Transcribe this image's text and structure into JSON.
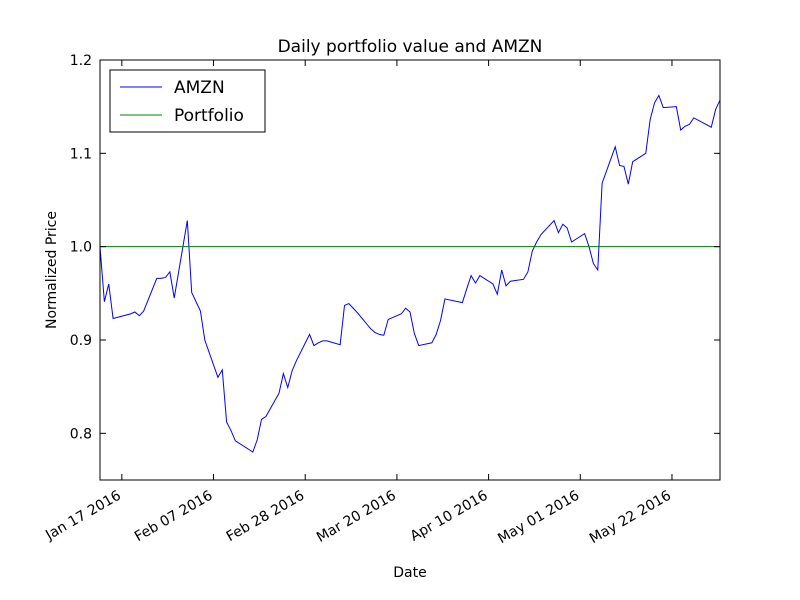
{
  "chart_data": {
    "type": "line",
    "title": "Daily portfolio value and AMZN",
    "xlabel": "Date",
    "ylabel": "Normalized Price",
    "xlim": [
      "2016-01-12",
      "2016-06-02"
    ],
    "ylim": [
      0.75,
      1.2
    ],
    "yticks": [
      0.8,
      0.9,
      1.0,
      1.1,
      1.2
    ],
    "ytick_labels": [
      "0.8",
      "0.9",
      "1.0",
      "1.1",
      "1.2"
    ],
    "xticks": [
      {
        "date": "2016-01-17",
        "label": "Jan 17 2016"
      },
      {
        "date": "2016-02-07",
        "label": "Feb 07 2016"
      },
      {
        "date": "2016-02-28",
        "label": "Feb 28 2016"
      },
      {
        "date": "2016-03-20",
        "label": "Mar 20 2016"
      },
      {
        "date": "2016-04-10",
        "label": "Apr 10 2016"
      },
      {
        "date": "2016-05-01",
        "label": "May 01 2016"
      },
      {
        "date": "2016-05-22",
        "label": "May 22 2016"
      }
    ],
    "grid": false,
    "legend_position": "top-left",
    "series": [
      {
        "name": "AMZN",
        "color": "#0000ff",
        "points": [
          [
            "2016-01-12",
            1.0
          ],
          [
            "2016-01-13",
            0.941
          ],
          [
            "2016-01-14",
            0.96
          ],
          [
            "2016-01-15",
            0.923
          ],
          [
            "2016-01-19",
            0.928
          ],
          [
            "2016-01-20",
            0.93
          ],
          [
            "2016-01-21",
            0.926
          ],
          [
            "2016-01-22",
            0.931
          ],
          [
            "2016-01-25",
            0.966
          ],
          [
            "2016-01-26",
            0.966
          ],
          [
            "2016-01-27",
            0.967
          ],
          [
            "2016-01-28",
            0.973
          ],
          [
            "2016-01-29",
            0.945
          ],
          [
            "2016-02-01",
            1.028
          ],
          [
            "2016-02-02",
            0.951
          ],
          [
            "2016-02-03",
            0.941
          ],
          [
            "2016-02-04",
            0.931
          ],
          [
            "2016-02-05",
            0.9
          ],
          [
            "2016-02-08",
            0.86
          ],
          [
            "2016-02-09",
            0.868
          ],
          [
            "2016-02-10",
            0.812
          ],
          [
            "2016-02-11",
            0.803
          ],
          [
            "2016-02-12",
            0.792
          ],
          [
            "2016-02-16",
            0.78
          ],
          [
            "2016-02-17",
            0.793
          ],
          [
            "2016-02-18",
            0.815
          ],
          [
            "2016-02-19",
            0.818
          ],
          [
            "2016-02-22",
            0.843
          ],
          [
            "2016-02-23",
            0.864
          ],
          [
            "2016-02-24",
            0.849
          ],
          [
            "2016-02-25",
            0.867
          ],
          [
            "2016-02-26",
            0.878
          ],
          [
            "2016-02-29",
            0.906
          ],
          [
            "2016-03-01",
            0.894
          ],
          [
            "2016-03-02",
            0.897
          ],
          [
            "2016-03-03",
            0.899
          ],
          [
            "2016-03-04",
            0.899
          ],
          [
            "2016-03-07",
            0.895
          ],
          [
            "2016-03-08",
            0.937
          ],
          [
            "2016-03-09",
            0.939
          ],
          [
            "2016-03-10",
            0.934
          ],
          [
            "2016-03-11",
            0.929
          ],
          [
            "2016-03-14",
            0.912
          ],
          [
            "2016-03-15",
            0.908
          ],
          [
            "2016-03-16",
            0.906
          ],
          [
            "2016-03-17",
            0.905
          ],
          [
            "2016-03-18",
            0.922
          ],
          [
            "2016-03-21",
            0.928
          ],
          [
            "2016-03-22",
            0.934
          ],
          [
            "2016-03-23",
            0.93
          ],
          [
            "2016-03-24",
            0.907
          ],
          [
            "2016-03-25",
            0.894
          ],
          [
            "2016-03-28",
            0.897
          ],
          [
            "2016-03-29",
            0.906
          ],
          [
            "2016-03-30",
            0.921
          ],
          [
            "2016-03-31",
            0.944
          ],
          [
            "2016-04-04",
            0.94
          ],
          [
            "2016-04-05",
            0.955
          ],
          [
            "2016-04-06",
            0.969
          ],
          [
            "2016-04-07",
            0.961
          ],
          [
            "2016-04-08",
            0.969
          ],
          [
            "2016-04-11",
            0.96
          ],
          [
            "2016-04-12",
            0.949
          ],
          [
            "2016-04-13",
            0.975
          ],
          [
            "2016-04-14",
            0.958
          ],
          [
            "2016-04-15",
            0.963
          ],
          [
            "2016-04-18",
            0.965
          ],
          [
            "2016-04-19",
            0.973
          ],
          [
            "2016-04-20",
            0.995
          ],
          [
            "2016-04-21",
            1.005
          ],
          [
            "2016-04-22",
            1.013
          ],
          [
            "2016-04-25",
            1.028
          ],
          [
            "2016-04-26",
            1.015
          ],
          [
            "2016-04-27",
            1.024
          ],
          [
            "2016-04-28",
            1.02
          ],
          [
            "2016-04-29",
            1.005
          ],
          [
            "2016-05-02",
            1.014
          ],
          [
            "2016-05-03",
            1.0
          ],
          [
            "2016-05-04",
            0.982
          ],
          [
            "2016-05-05",
            0.975
          ],
          [
            "2016-05-06",
            1.068
          ],
          [
            "2016-05-09",
            1.107
          ],
          [
            "2016-05-10",
            1.087
          ],
          [
            "2016-05-11",
            1.086
          ],
          [
            "2016-05-12",
            1.067
          ],
          [
            "2016-05-13",
            1.091
          ],
          [
            "2016-05-16",
            1.1
          ],
          [
            "2016-05-17",
            1.136
          ],
          [
            "2016-05-18",
            1.154
          ],
          [
            "2016-05-19",
            1.162
          ],
          [
            "2016-05-20",
            1.149
          ],
          [
            "2016-05-23",
            1.15
          ],
          [
            "2016-05-24",
            1.125
          ],
          [
            "2016-05-25",
            1.129
          ],
          [
            "2016-05-26",
            1.131
          ],
          [
            "2016-05-27",
            1.138
          ],
          [
            "2016-05-31",
            1.128
          ],
          [
            "2016-06-01",
            1.147
          ],
          [
            "2016-06-02",
            1.157
          ],
          [
            "2016-06-03",
            1.153
          ],
          [
            "2016-06-07",
            1.171
          ],
          [
            "2016-06-08",
            1.165
          ]
        ]
      },
      {
        "name": "Portfolio",
        "color": "#008000",
        "points": [
          [
            "2016-01-12",
            1.0
          ],
          [
            "2016-06-08",
            1.0
          ]
        ]
      }
    ]
  }
}
